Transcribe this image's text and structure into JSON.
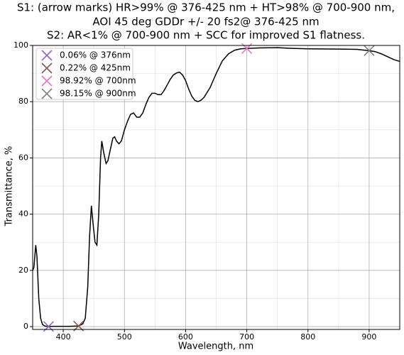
{
  "chart_data": {
    "type": "line",
    "title": [
      "S1: (arrow marks) HR>99% @ 376-425 nm + HT>98% @ 700-900 nm,",
      "AOI 45 deg  GDDr +/- 20 fs2@ 376-425 nm",
      "S2: AR<1% @ 700-900 nm + SCC for improved S1 flatness."
    ],
    "x_label": "Wavelength, nm",
    "y_label": "Transmittance, %",
    "xlim": [
      350,
      950
    ],
    "ylim": [
      -1,
      100
    ],
    "xticks": [
      400,
      500,
      600,
      700,
      800,
      900
    ],
    "yticks": [
      0,
      20,
      40,
      60,
      80,
      100
    ],
    "xminorticks": [
      450,
      550,
      650,
      750,
      850
    ],
    "yminorticks": [
      10,
      30,
      50,
      70,
      90
    ],
    "grid": true,
    "color": "#000000",
    "x": [
      350,
      352,
      355,
      357,
      360,
      363,
      366,
      370,
      376,
      385,
      400,
      410,
      425,
      432,
      436,
      440,
      443,
      446,
      449,
      452,
      455,
      458,
      461,
      463,
      466,
      470,
      473,
      477,
      481,
      484,
      487,
      491,
      495,
      500,
      505,
      510,
      515,
      520,
      525,
      530,
      535,
      540,
      545,
      550,
      555,
      560,
      565,
      570,
      575,
      580,
      585,
      590,
      595,
      600,
      605,
      610,
      615,
      620,
      625,
      630,
      640,
      650,
      660,
      670,
      680,
      690,
      700,
      720,
      750,
      770,
      800,
      850,
      880,
      900,
      910,
      920,
      930,
      940,
      950
    ],
    "values": [
      20,
      21,
      29,
      25,
      10,
      3,
      0.8,
      0.2,
      0.06,
      0.1,
      0.1,
      0.1,
      0.22,
      1,
      3,
      14,
      32,
      43,
      36,
      30,
      29,
      40,
      60,
      66,
      62,
      58,
      59,
      63,
      67,
      67.5,
      66,
      65,
      66,
      70,
      73,
      75.5,
      76,
      74.5,
      74.5,
      76,
      79,
      81.5,
      83,
      83,
      82.5,
      82.5,
      84,
      86,
      88,
      89.5,
      90.2,
      90.5,
      89.5,
      87.5,
      84.5,
      82,
      80.5,
      80,
      80.5,
      81.5,
      85,
      90,
      94.5,
      97,
      98.3,
      98.8,
      98.92,
      99.1,
      99.2,
      99,
      98.8,
      98.7,
      98.6,
      98.15,
      97.8,
      97,
      96,
      95,
      94.3
    ],
    "legend": "upper left",
    "markers": [
      {
        "label": "0.06% @ 376nm",
        "color": "#9467bd",
        "x": 376,
        "y": 0.06
      },
      {
        "label": "0.22% @ 425nm",
        "color": "#8c564b",
        "x": 425,
        "y": 0.22
      },
      {
        "label": "98.92% @ 700nm",
        "color": "#e377c2",
        "x": 700,
        "y": 98.92
      },
      {
        "label": "98.15% @ 900nm",
        "color": "#7f7f7f",
        "x": 900,
        "y": 98.15
      }
    ]
  }
}
